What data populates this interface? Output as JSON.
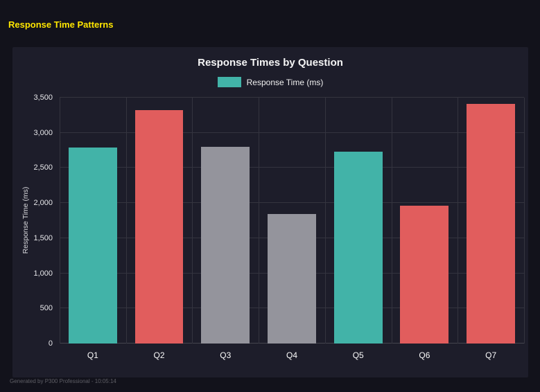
{
  "page": {
    "title": "Response Time Patterns",
    "footer": "Generated by P300 Professional - 10:05:14"
  },
  "colors": {
    "background": "#12121b",
    "panel": "#1d1d2a",
    "teal": "#42b3a8",
    "red": "#e15d5d",
    "gray": "#94949c",
    "accent_yellow": "#ffe600",
    "gridline": "#34343f"
  },
  "chart_data": {
    "type": "bar",
    "title": "Response Times by Question",
    "legend_label": "Response Time (ms)",
    "legend_color": "#42b3a8",
    "legend_position": "top",
    "categories": [
      "Q1",
      "Q2",
      "Q3",
      "Q4",
      "Q5",
      "Q6",
      "Q7"
    ],
    "values": [
      2790,
      3320,
      2800,
      1840,
      2730,
      1960,
      3410
    ],
    "bar_colors": [
      "#42b3a8",
      "#e15d5d",
      "#94949c",
      "#94949c",
      "#42b3a8",
      "#e15d5d",
      "#e15d5d"
    ],
    "xlabel": "",
    "ylabel": "Response Time (ms)",
    "ylim": [
      0,
      3500
    ],
    "yticks": [
      0,
      500,
      1000,
      1500,
      2000,
      2500,
      3000,
      3500
    ],
    "ytick_labels": [
      "0",
      "500",
      "1,000",
      "1,500",
      "2,000",
      "2,500",
      "3,000",
      "3,500"
    ],
    "grid": true
  }
}
